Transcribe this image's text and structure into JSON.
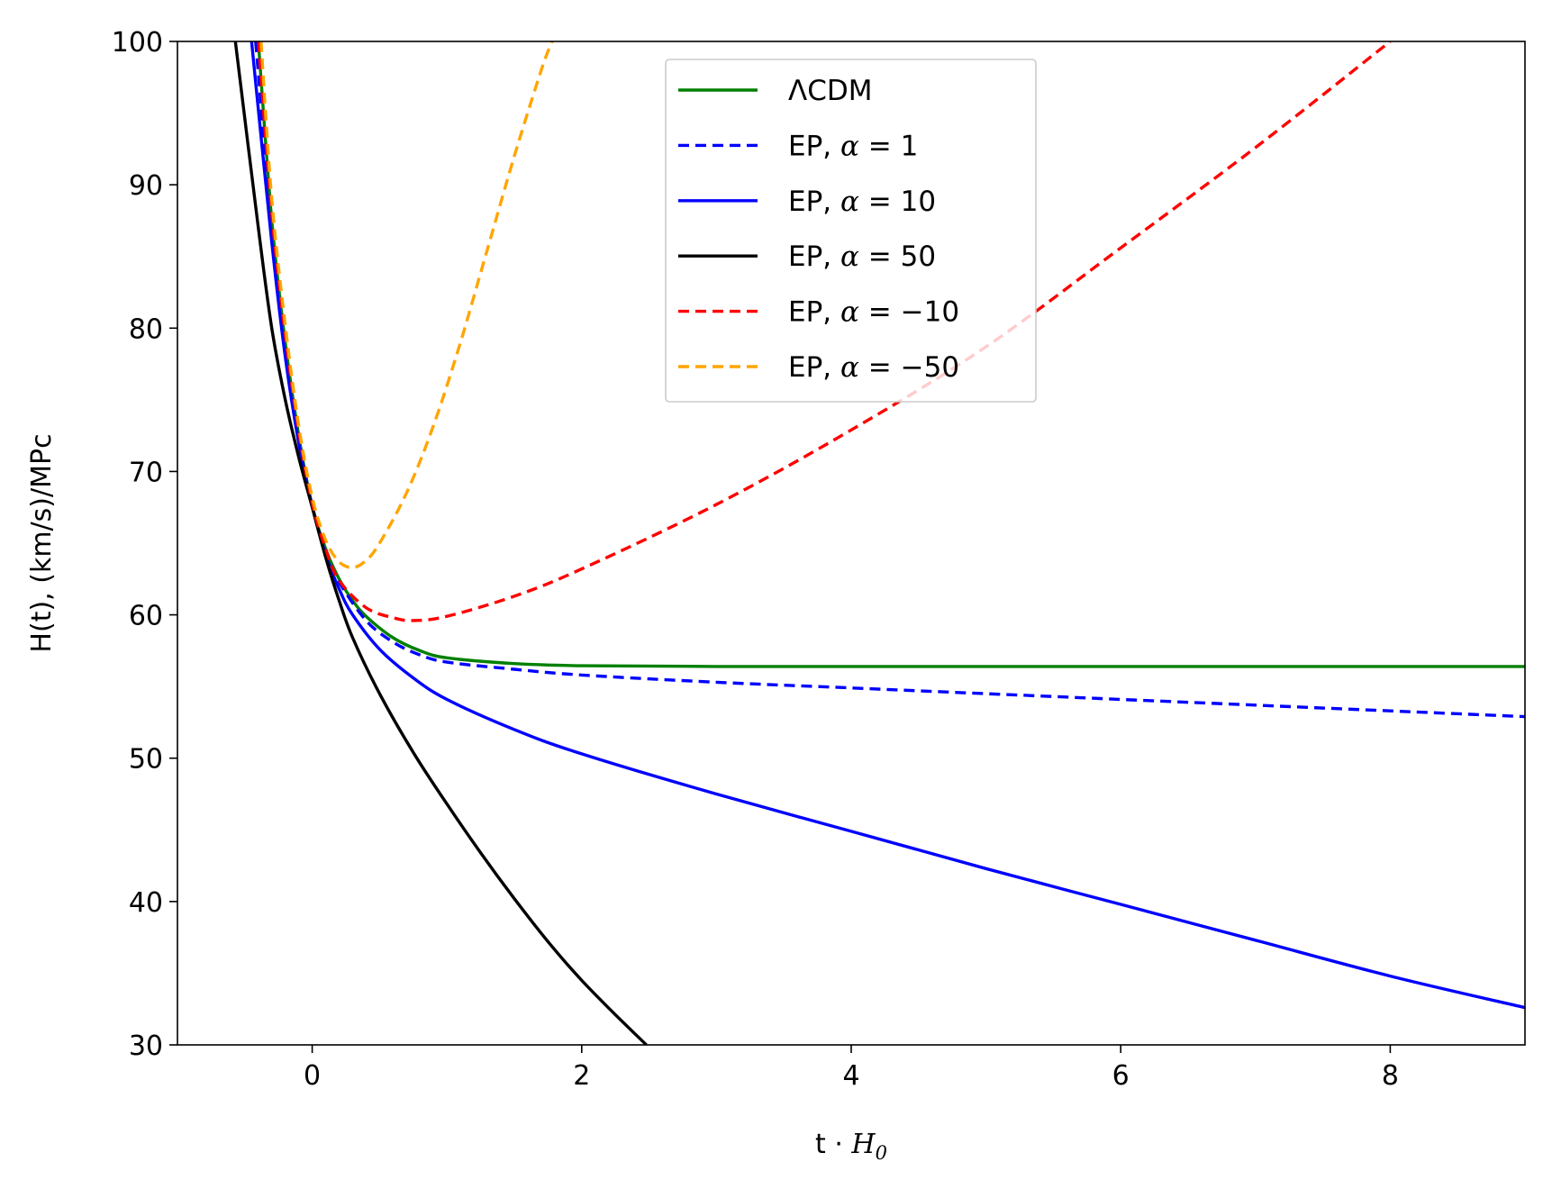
{
  "chart_data": {
    "type": "line",
    "title": "",
    "xlabel": "t · H_0",
    "xlabel_parts": {
      "prefix": "t · ",
      "var": "H",
      "sub": "0"
    },
    "ylabel": "H(t), (km/s)/MPc",
    "xlim": [
      -1,
      9
    ],
    "ylim": [
      30,
      100
    ],
    "xticks": [
      0,
      2,
      4,
      6,
      8
    ],
    "yticks": [
      30,
      40,
      50,
      60,
      70,
      80,
      90,
      100
    ],
    "grid": false,
    "legend_position": "upper center",
    "series": [
      {
        "name": "ΛCDM",
        "legend_text": "ΛCDM",
        "color": "#008000",
        "style": "solid",
        "points": [
          [
            -0.4,
            100
          ],
          [
            -0.3,
            87.5
          ],
          [
            -0.2,
            79.0
          ],
          [
            -0.1,
            72.5
          ],
          [
            0,
            67.6
          ],
          [
            0.1,
            64.6
          ],
          [
            0.2,
            62.5
          ],
          [
            0.3,
            61.0
          ],
          [
            0.4,
            59.9
          ],
          [
            0.6,
            58.4
          ],
          [
            0.8,
            57.5
          ],
          [
            1.0,
            57.0
          ],
          [
            1.5,
            56.6
          ],
          [
            2,
            56.45
          ],
          [
            3,
            56.4
          ],
          [
            5,
            56.4
          ],
          [
            7,
            56.4
          ],
          [
            9,
            56.4
          ]
        ]
      },
      {
        "name": "EP, α = 1",
        "legend_prefix": "EP, ",
        "legend_var": "α",
        "legend_value": "= 1",
        "color": "#0000ff",
        "style": "dashed",
        "points": [
          [
            -0.42,
            100
          ],
          [
            -0.3,
            87.0
          ],
          [
            -0.2,
            78.6
          ],
          [
            -0.1,
            72.3
          ],
          [
            0,
            67.6
          ],
          [
            0.1,
            64.5
          ],
          [
            0.2,
            62.3
          ],
          [
            0.4,
            59.6
          ],
          [
            0.6,
            58.1
          ],
          [
            0.8,
            57.2
          ],
          [
            1.0,
            56.7
          ],
          [
            1.5,
            56.2
          ],
          [
            2,
            55.8
          ],
          [
            3,
            55.3
          ],
          [
            4,
            54.9
          ],
          [
            5,
            54.5
          ],
          [
            6,
            54.1
          ],
          [
            7,
            53.7
          ],
          [
            8,
            53.3
          ],
          [
            9,
            52.9
          ]
        ]
      },
      {
        "name": "EP, α = 10",
        "legend_prefix": "EP, ",
        "legend_var": "α",
        "legend_value": "= 10",
        "color": "#0000ff",
        "style": "solid",
        "points": [
          [
            -0.45,
            100
          ],
          [
            -0.3,
            86.0
          ],
          [
            -0.2,
            78.0
          ],
          [
            -0.1,
            72.0
          ],
          [
            0,
            67.6
          ],
          [
            0.1,
            64.2
          ],
          [
            0.2,
            61.8
          ],
          [
            0.3,
            60.0
          ],
          [
            0.5,
            57.6
          ],
          [
            0.75,
            55.6
          ],
          [
            1.0,
            54.1
          ],
          [
            1.5,
            52.0
          ],
          [
            2,
            50.3
          ],
          [
            3,
            47.5
          ],
          [
            4,
            44.9
          ],
          [
            5,
            42.3
          ],
          [
            6,
            39.8
          ],
          [
            7,
            37.3
          ],
          [
            8,
            34.8
          ],
          [
            9,
            32.6
          ]
        ]
      },
      {
        "name": "EP, α = 50",
        "legend_prefix": "EP, ",
        "legend_var": "α",
        "legend_value": "= 50",
        "color": "#000000",
        "style": "solid",
        "points": [
          [
            -0.57,
            100
          ],
          [
            -0.4,
            87.0
          ],
          [
            -0.3,
            80.0
          ],
          [
            -0.2,
            75.0
          ],
          [
            -0.1,
            71.0
          ],
          [
            0,
            67.5
          ],
          [
            0.1,
            64.0
          ],
          [
            0.2,
            61.0
          ],
          [
            0.3,
            58.4
          ],
          [
            0.5,
            54.5
          ],
          [
            0.75,
            50.4
          ],
          [
            1.0,
            46.8
          ],
          [
            1.25,
            43.4
          ],
          [
            1.5,
            40.2
          ],
          [
            1.75,
            37.2
          ],
          [
            2.0,
            34.5
          ],
          [
            2.25,
            32.1
          ],
          [
            2.48,
            30.0
          ]
        ]
      },
      {
        "name": "EP, α = −10",
        "legend_prefix": "EP, ",
        "legend_var": "α",
        "legend_value": "= −10",
        "color": "#ff0000",
        "style": "dashed",
        "points": [
          [
            -0.4,
            100
          ],
          [
            -0.3,
            88.0
          ],
          [
            -0.2,
            79.5
          ],
          [
            -0.1,
            72.8
          ],
          [
            0,
            67.8
          ],
          [
            0.1,
            64.6
          ],
          [
            0.2,
            62.4
          ],
          [
            0.4,
            60.5
          ],
          [
            0.6,
            59.8
          ],
          [
            0.75,
            59.6
          ],
          [
            1.0,
            59.9
          ],
          [
            1.5,
            61.3
          ],
          [
            2,
            63.2
          ],
          [
            3,
            67.7
          ],
          [
            4,
            72.9
          ],
          [
            5,
            78.7
          ],
          [
            6,
            85.6
          ],
          [
            7,
            92.6
          ],
          [
            8,
            100
          ]
        ]
      },
      {
        "name": "EP, α = −50",
        "legend_prefix": "EP, ",
        "legend_var": "α",
        "legend_value": "= −50",
        "color": "#ffa500",
        "style": "dashed",
        "points": [
          [
            -0.38,
            100
          ],
          [
            -0.3,
            89.0
          ],
          [
            -0.2,
            80.2
          ],
          [
            -0.1,
            73.2
          ],
          [
            0,
            68.2
          ],
          [
            0.1,
            65.2
          ],
          [
            0.2,
            63.7
          ],
          [
            0.3,
            63.3
          ],
          [
            0.4,
            63.8
          ],
          [
            0.5,
            65.0
          ],
          [
            0.7,
            68.5
          ],
          [
            0.9,
            73.2
          ],
          [
            1.1,
            79.0
          ],
          [
            1.3,
            85.5
          ],
          [
            1.5,
            92.0
          ],
          [
            1.7,
            98.0
          ],
          [
            1.78,
            100
          ]
        ]
      }
    ]
  }
}
